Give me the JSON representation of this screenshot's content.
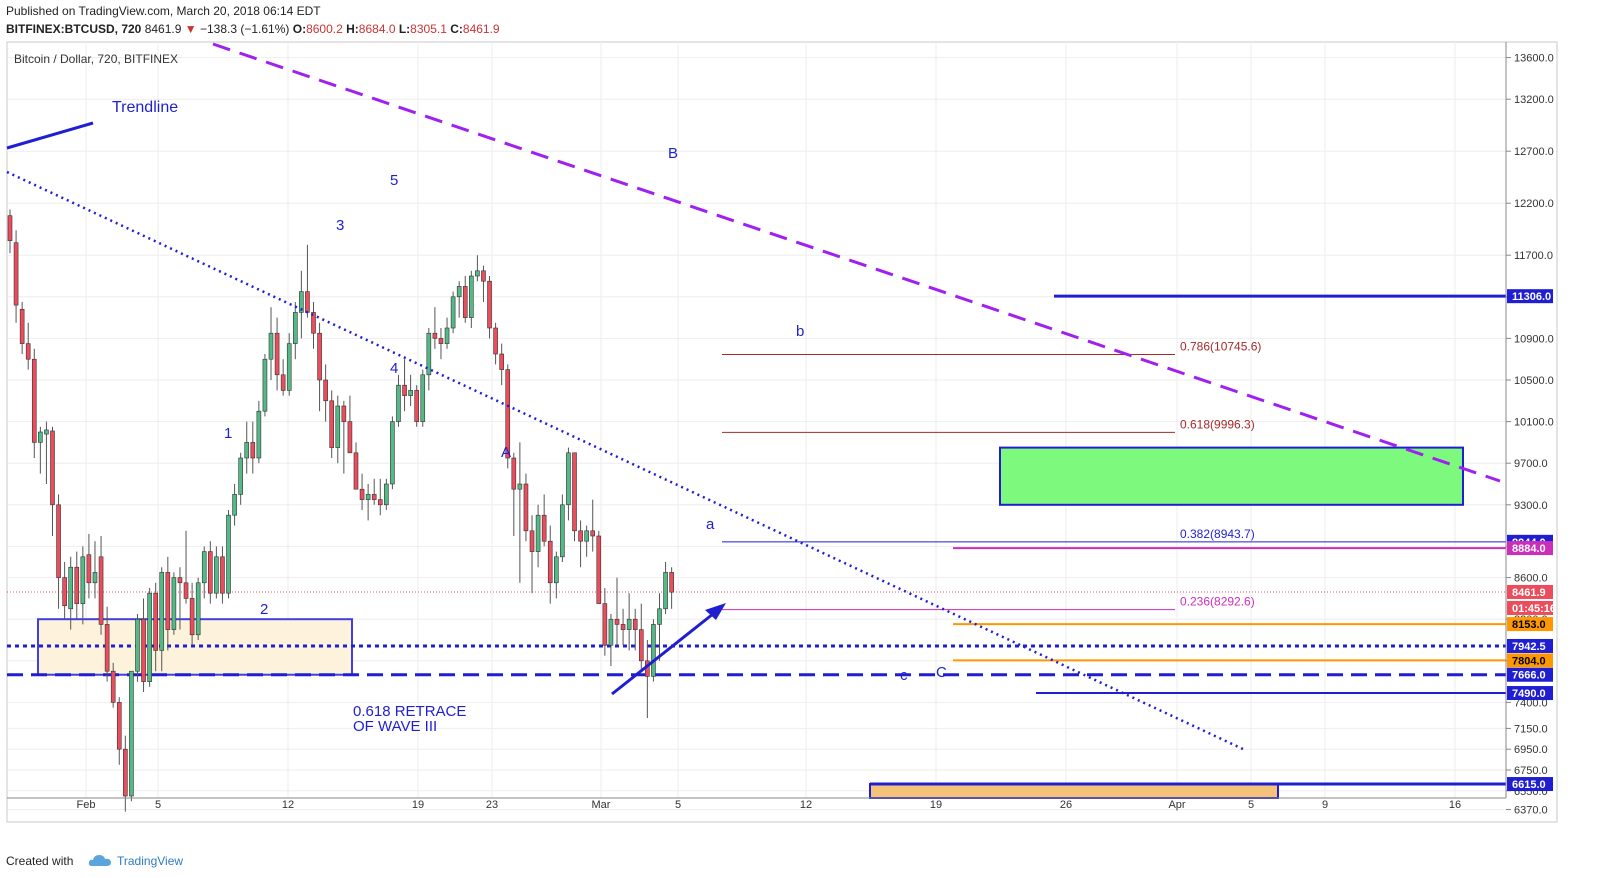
{
  "header": {
    "published": "Published on TradingView.com, March 20, 2018 06:14 EDT",
    "symbol": "BITFINEX:BTCUSD, 720",
    "last": "8461.9",
    "change_arrow": "▼",
    "change": "−138.3 (−1.61%)",
    "o_label": "O:",
    "o": "8600.2",
    "h_label": "H:",
    "h": "8684.0",
    "l_label": "L:",
    "l": "8305.1",
    "c_label": "C:",
    "c": "8461.9"
  },
  "footer": {
    "created_with": "Created with",
    "brand": "TradingView"
  },
  "chart_data": {
    "type": "candlestick",
    "title": "Bitcoin / Dollar, 720, BITFINEX",
    "ylim": [
      6250,
      13750
    ],
    "price_ticks": [
      13600,
      13200,
      12700,
      12200,
      11700,
      11300,
      10900,
      10500,
      10100,
      9700,
      9300,
      8900,
      8600,
      8200,
      7800,
      7400,
      7150,
      6950,
      6750,
      6550,
      6370
    ],
    "x_labels": [
      "Feb",
      "5",
      "12",
      "19",
      "23",
      "Mar",
      "5",
      "12",
      "19",
      "26",
      "Apr",
      "5",
      "9",
      "16"
    ],
    "colors": {
      "up": "#53b987",
      "down": "#eb4d5c",
      "wick": "#555555",
      "blue": "#1f1fd1",
      "purple": "#a020f0",
      "orange": "#ff9800",
      "fib_red": "#a52a2a",
      "fib_magenta": "#cc2ebc"
    },
    "candles": [
      [
        12080,
        12140,
        11720,
        11840
      ],
      [
        11820,
        11940,
        11050,
        11220
      ],
      [
        11180,
        11250,
        10750,
        10850
      ],
      [
        10850,
        11050,
        10600,
        10700
      ],
      [
        10700,
        10800,
        9750,
        9900
      ],
      [
        9900,
        10050,
        9600,
        10000
      ],
      [
        9980,
        10100,
        9500,
        10020
      ],
      [
        10010,
        10050,
        9000,
        9300
      ],
      [
        9300,
        9400,
        8300,
        8600
      ],
      [
        8600,
        8750,
        8200,
        8330
      ],
      [
        8300,
        8800,
        8100,
        8700
      ],
      [
        8700,
        8850,
        8200,
        8350
      ],
      [
        8350,
        8900,
        8150,
        8800
      ],
      [
        8820,
        9020,
        8400,
        8550
      ],
      [
        8550,
        8950,
        8400,
        8650
      ],
      [
        8800,
        9000,
        8050,
        8150
      ],
      [
        8150,
        8320,
        7600,
        7700
      ],
      [
        7700,
        7780,
        7350,
        7400
      ],
      [
        7400,
        7450,
        6800,
        6950
      ],
      [
        6950,
        7080,
        6350,
        6500
      ],
      [
        6500,
        7700,
        6450,
        7700
      ],
      [
        7700,
        8250,
        7600,
        8200
      ],
      [
        8200,
        8400,
        7500,
        7600
      ],
      [
        7600,
        8500,
        7550,
        8450
      ],
      [
        8450,
        8550,
        7700,
        7900
      ],
      [
        7900,
        8700,
        7700,
        8650
      ],
      [
        8650,
        8800,
        7900,
        8100
      ],
      [
        8100,
        8650,
        8050,
        8600
      ],
      [
        8600,
        8700,
        8100,
        8550
      ],
      [
        8550,
        9050,
        8350,
        8400
      ],
      [
        8400,
        8550,
        7950,
        8050
      ],
      [
        8050,
        8600,
        8000,
        8550
      ],
      [
        8550,
        8900,
        8400,
        8850
      ],
      [
        8850,
        8950,
        8350,
        8450
      ],
      [
        8450,
        8900,
        8400,
        8800
      ],
      [
        8800,
        8900,
        8350,
        8450
      ],
      [
        8450,
        9250,
        8400,
        9200
      ],
      [
        9200,
        9500,
        9100,
        9400
      ],
      [
        9400,
        9800,
        9300,
        9750
      ],
      [
        9750,
        10100,
        9600,
        9900
      ],
      [
        9900,
        10100,
        9600,
        9750
      ],
      [
        9750,
        10300,
        9700,
        10200
      ],
      [
        10200,
        10750,
        10150,
        10700
      ],
      [
        10700,
        11200,
        10500,
        10950
      ],
      [
        10950,
        11100,
        10400,
        10550
      ],
      [
        10550,
        10700,
        10350,
        10400
      ],
      [
        10400,
        10950,
        10350,
        10850
      ],
      [
        10850,
        11250,
        10700,
        11150
      ],
      [
        11150,
        11550,
        10900,
        11350
      ],
      [
        11350,
        11800,
        11100,
        11150
      ],
      [
        11150,
        11250,
        10800,
        10950
      ],
      [
        10950,
        11050,
        10200,
        10500
      ],
      [
        10500,
        10650,
        10100,
        10300
      ],
      [
        10300,
        10400,
        9750,
        9850
      ],
      [
        9850,
        10350,
        9700,
        10250
      ],
      [
        10250,
        10300,
        9600,
        10100
      ],
      [
        10100,
        10350,
        9800,
        9800
      ],
      [
        9800,
        9900,
        9450,
        9450
      ],
      [
        9450,
        9600,
        9250,
        9350
      ],
      [
        9350,
        9500,
        9150,
        9400
      ],
      [
        9400,
        9550,
        9300,
        9350
      ],
      [
        9350,
        9550,
        9200,
        9300
      ],
      [
        9300,
        9550,
        9250,
        9500
      ],
      [
        9500,
        10150,
        9450,
        10100
      ],
      [
        10100,
        10550,
        10050,
        10450
      ],
      [
        10450,
        10700,
        10200,
        10350
      ],
      [
        10350,
        10550,
        10250,
        10400
      ],
      [
        10400,
        10450,
        10050,
        10100
      ],
      [
        10100,
        10600,
        10050,
        10550
      ],
      [
        10550,
        11000,
        10400,
        10950
      ],
      [
        10950,
        11200,
        10800,
        10900
      ],
      [
        10900,
        11000,
        10700,
        10850
      ],
      [
        10850,
        11100,
        10800,
        11000
      ],
      [
        11000,
        11350,
        10950,
        11300
      ],
      [
        11300,
        11450,
        11100,
        11400
      ],
      [
        11400,
        11500,
        11050,
        11100
      ],
      [
        11100,
        11550,
        11000,
        11500
      ],
      [
        11500,
        11700,
        11450,
        11550
      ],
      [
        11550,
        11600,
        11250,
        11450
      ],
      [
        11450,
        11500,
        10900,
        11000
      ],
      [
        11000,
        11050,
        10650,
        10750
      ],
      [
        10750,
        10850,
        10450,
        10600
      ],
      [
        10600,
        10650,
        9650,
        9750
      ],
      [
        9750,
        9800,
        9000,
        9450
      ],
      [
        9450,
        9900,
        8550,
        9500
      ],
      [
        9500,
        9600,
        8950,
        9050
      ],
      [
        9050,
        9200,
        8450,
        8850
      ],
      [
        8850,
        9300,
        8700,
        9200
      ],
      [
        9200,
        9400,
        8900,
        8950
      ],
      [
        8950,
        9100,
        8350,
        8550
      ],
      [
        8550,
        8850,
        8400,
        8800
      ],
      [
        8800,
        9400,
        8750,
        9300
      ],
      [
        9300,
        9850,
        9150,
        9800
      ],
      [
        9800,
        9800,
        8950,
        9050
      ],
      [
        9050,
        9150,
        8700,
        8950
      ],
      [
        8950,
        9100,
        8800,
        9050
      ],
      [
        9050,
        9350,
        8850,
        9000
      ],
      [
        9000,
        9050,
        8350,
        8350
      ],
      [
        8350,
        8500,
        7850,
        7950
      ],
      [
        7950,
        8250,
        7750,
        8200
      ],
      [
        8200,
        8600,
        7950,
        8150
      ],
      [
        8150,
        8300,
        7950,
        8100
      ],
      [
        8100,
        8450,
        7900,
        8200
      ],
      [
        8200,
        8300,
        7900,
        8100
      ],
      [
        8100,
        8350,
        7700,
        7800
      ],
      [
        7800,
        8000,
        7250,
        7650
      ],
      [
        7650,
        8200,
        7600,
        8150
      ],
      [
        8150,
        8450,
        7800,
        8300
      ],
      [
        8300,
        8750,
        8250,
        8650
      ],
      [
        8650,
        8700,
        8300,
        8460
      ]
    ],
    "series": [
      {
        "name": "Trendline",
        "type": "line",
        "color": "#1f1fd1"
      },
      {
        "type": "dashed-line",
        "color": "#a020f0"
      },
      {
        "type": "dotted-line",
        "color": "#1f1fd1"
      }
    ],
    "fibonacci": [
      {
        "label": "0.786(10745.6)",
        "value": 10745.6,
        "color": "#a52a2a"
      },
      {
        "label": "0.618(9996.3)",
        "value": 9996.3,
        "color": "#a52a2a"
      },
      {
        "label": "0.382(8943.7)",
        "value": 8943.7,
        "color": "#1f1fd1"
      },
      {
        "label": "0.236(8292.6)",
        "value": 8292.6,
        "color": "#cc2ebc"
      }
    ],
    "price_labels": [
      {
        "text": "11306.0",
        "value": 11306,
        "bg": "#1f1fd1",
        "fg": "#ffffff"
      },
      {
        "text": "8944.0",
        "value": 8944,
        "bg": "#1f1fd1",
        "fg": "#ffffff"
      },
      {
        "text": "8884.0",
        "value": 8884,
        "bg": "#cc2ebc",
        "fg": "#ffffff"
      },
      {
        "text": "8461.9",
        "value": 8461.9,
        "bg": "#eb4d5c",
        "fg": "#ffffff"
      },
      {
        "text": "01:45:16",
        "value": 8300,
        "bg": "#eb4d5c",
        "fg": "#ffffff"
      },
      {
        "text": "8153.0",
        "value": 8153,
        "bg": "#ff9800",
        "fg": "#000000"
      },
      {
        "text": "7942.5",
        "value": 7942.5,
        "bg": "#1f1fd1",
        "fg": "#ffffff"
      },
      {
        "text": "7804.0",
        "value": 7804,
        "bg": "#ff9800",
        "fg": "#000000"
      },
      {
        "text": "7666.0",
        "value": 7666,
        "bg": "#1f1fd1",
        "fg": "#ffffff"
      },
      {
        "text": "7490.0",
        "value": 7490,
        "bg": "#1f1fd1",
        "fg": "#ffffff"
      },
      {
        "text": "6615.0",
        "value": 6615,
        "bg": "#1f1fd1",
        "fg": "#ffffff"
      }
    ],
    "annotations": [
      {
        "text": "Trendline"
      },
      {
        "text": "1"
      },
      {
        "text": "2"
      },
      {
        "text": "3"
      },
      {
        "text": "4"
      },
      {
        "text": "5"
      },
      {
        "text": "A"
      },
      {
        "text": "B"
      },
      {
        "text": "C"
      },
      {
        "text": "a"
      },
      {
        "text": "b"
      },
      {
        "text": "c"
      },
      {
        "text": "0.618 RETRACE"
      },
      {
        "text": "OF WAVE III"
      }
    ],
    "zones": [
      {
        "from": 7666,
        "to": 8200,
        "color": "#fdf3dc"
      },
      {
        "from": 9300,
        "to": 9850,
        "color": "#7dfa7d"
      },
      {
        "from": 6250,
        "to": 6615,
        "color": "#f5c27a"
      }
    ]
  }
}
